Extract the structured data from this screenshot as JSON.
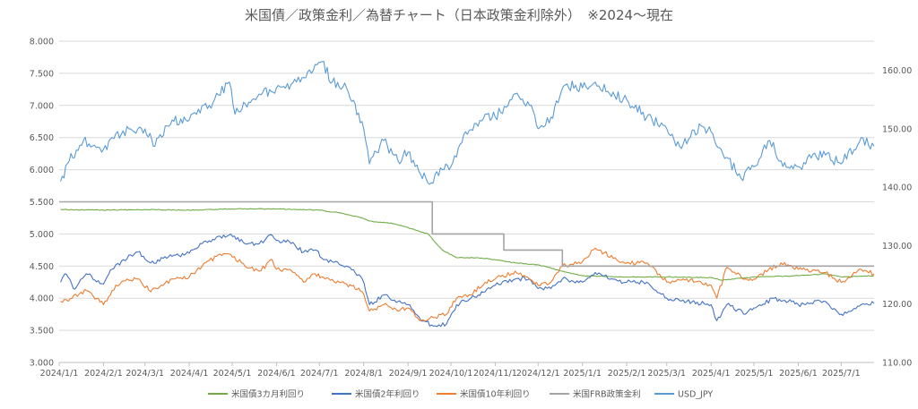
{
  "chart_data": {
    "type": "line",
    "title": "米国債／政策金利／為替チャート（日本政策金利除外）　※2024～現在",
    "x_start": "2024-01-01",
    "x_end": "2025-07-24",
    "x_tick_labels": [
      "2024/1/1",
      "2024/2/1",
      "2024/3/1",
      "2024/4/1",
      "2024/5/1",
      "2024/6/1",
      "2024/7/1",
      "2024/8/1",
      "2024/9/1",
      "2024/10/1",
      "2024/11/1",
      "2024/12/1",
      "2025/1/1",
      "2025/2/1",
      "2025/3/1",
      "2025/4/1",
      "2025/5/1",
      "2025/6/1",
      "2025/7/1"
    ],
    "x_tick_dates": [
      "2024-01-01",
      "2024-02-01",
      "2024-03-01",
      "2024-04-01",
      "2024-05-01",
      "2024-06-01",
      "2024-07-01",
      "2024-08-01",
      "2024-09-01",
      "2024-10-01",
      "2024-11-01",
      "2024-12-01",
      "2025-01-01",
      "2025-02-01",
      "2025-03-01",
      "2025-04-01",
      "2025-05-01",
      "2025-06-01",
      "2025-07-01"
    ],
    "y_left": {
      "min": 3.0,
      "max": 8.0,
      "ticks": [
        "3.000",
        "3.500",
        "4.000",
        "4.500",
        "5.000",
        "5.500",
        "6.000",
        "6.500",
        "7.000",
        "7.500",
        "8.000"
      ]
    },
    "y_right": {
      "min": 110,
      "max": 165,
      "ticks": [
        "110.00",
        "120.00",
        "130.00",
        "140.00",
        "150.00",
        "160.00"
      ]
    },
    "grid": "horizontal",
    "legend_position": "bottom",
    "series": [
      {
        "name": "米国債3カ月利回り",
        "color": "#70ad47",
        "axis": "left",
        "step": false,
        "points": [
          [
            "2024-01-02",
            5.38
          ],
          [
            "2024-02-01",
            5.37
          ],
          [
            "2024-03-01",
            5.38
          ],
          [
            "2024-04-01",
            5.37
          ],
          [
            "2024-05-01",
            5.39
          ],
          [
            "2024-06-01",
            5.39
          ],
          [
            "2024-06-20",
            5.38
          ],
          [
            "2024-07-01",
            5.37
          ],
          [
            "2024-07-15",
            5.33
          ],
          [
            "2024-07-31",
            5.25
          ],
          [
            "2024-08-05",
            5.2
          ],
          [
            "2024-08-20",
            5.17
          ],
          [
            "2024-09-01",
            5.1
          ],
          [
            "2024-09-15",
            5.0
          ],
          [
            "2024-09-25",
            4.75
          ],
          [
            "2024-10-05",
            4.63
          ],
          [
            "2024-10-20",
            4.63
          ],
          [
            "2024-11-01",
            4.6
          ],
          [
            "2024-11-15",
            4.55
          ],
          [
            "2024-12-01",
            4.52
          ],
          [
            "2024-12-18",
            4.42
          ],
          [
            "2025-01-01",
            4.35
          ],
          [
            "2025-02-01",
            4.33
          ],
          [
            "2025-03-01",
            4.33
          ],
          [
            "2025-04-01",
            4.32
          ],
          [
            "2025-04-08",
            4.28
          ],
          [
            "2025-05-01",
            4.33
          ],
          [
            "2025-06-01",
            4.35
          ],
          [
            "2025-06-20",
            4.38
          ],
          [
            "2025-07-01",
            4.33
          ],
          [
            "2025-07-24",
            4.35
          ]
        ]
      },
      {
        "name": "米国債2年利回り",
        "color": "#4472c4",
        "axis": "left",
        "step": false,
        "points": [
          [
            "2024-01-02",
            4.25
          ],
          [
            "2024-01-05",
            4.38
          ],
          [
            "2024-01-12",
            4.14
          ],
          [
            "2024-01-20",
            4.38
          ],
          [
            "2024-02-01",
            4.22
          ],
          [
            "2024-02-07",
            4.45
          ],
          [
            "2024-02-15",
            4.6
          ],
          [
            "2024-02-25",
            4.72
          ],
          [
            "2024-03-05",
            4.55
          ],
          [
            "2024-03-20",
            4.65
          ],
          [
            "2024-04-01",
            4.7
          ],
          [
            "2024-04-10",
            4.85
          ],
          [
            "2024-04-20",
            4.95
          ],
          [
            "2024-04-30",
            5.0
          ],
          [
            "2024-05-10",
            4.85
          ],
          [
            "2024-05-20",
            4.85
          ],
          [
            "2024-05-29",
            4.98
          ],
          [
            "2024-06-01",
            4.9
          ],
          [
            "2024-06-10",
            4.88
          ],
          [
            "2024-06-20",
            4.72
          ],
          [
            "2024-06-28",
            4.75
          ],
          [
            "2024-07-05",
            4.6
          ],
          [
            "2024-07-20",
            4.5
          ],
          [
            "2024-07-31",
            4.3
          ],
          [
            "2024-08-05",
            3.9
          ],
          [
            "2024-08-15",
            4.05
          ],
          [
            "2024-08-25",
            3.95
          ],
          [
            "2024-09-01",
            3.9
          ],
          [
            "2024-09-10",
            3.65
          ],
          [
            "2024-09-20",
            3.57
          ],
          [
            "2024-09-28",
            3.6
          ],
          [
            "2024-10-05",
            3.9
          ],
          [
            "2024-10-15",
            4.0
          ],
          [
            "2024-10-25",
            4.1
          ],
          [
            "2024-11-01",
            4.2
          ],
          [
            "2024-11-15",
            4.3
          ],
          [
            "2024-11-25",
            4.3
          ],
          [
            "2024-12-01",
            4.15
          ],
          [
            "2024-12-10",
            4.15
          ],
          [
            "2024-12-18",
            4.3
          ],
          [
            "2025-01-01",
            4.25
          ],
          [
            "2025-01-10",
            4.4
          ],
          [
            "2025-01-25",
            4.28
          ],
          [
            "2025-02-01",
            4.25
          ],
          [
            "2025-02-15",
            4.25
          ],
          [
            "2025-03-01",
            4.0
          ],
          [
            "2025-03-15",
            3.95
          ],
          [
            "2025-04-01",
            3.9
          ],
          [
            "2025-04-05",
            3.65
          ],
          [
            "2025-04-12",
            3.9
          ],
          [
            "2025-04-25",
            3.75
          ],
          [
            "2025-05-01",
            3.85
          ],
          [
            "2025-05-15",
            4.0
          ],
          [
            "2025-05-25",
            3.95
          ],
          [
            "2025-06-01",
            3.9
          ],
          [
            "2025-06-20",
            3.95
          ],
          [
            "2025-07-01",
            3.75
          ],
          [
            "2025-07-15",
            3.9
          ],
          [
            "2025-07-24",
            3.92
          ]
        ]
      },
      {
        "name": "米国債10年利回り",
        "color": "#ed7d31",
        "axis": "left",
        "step": false,
        "points": [
          [
            "2024-01-02",
            3.95
          ],
          [
            "2024-01-10",
            4.0
          ],
          [
            "2024-01-20",
            4.12
          ],
          [
            "2024-02-01",
            3.9
          ],
          [
            "2024-02-07",
            4.12
          ],
          [
            "2024-02-15",
            4.27
          ],
          [
            "2024-02-25",
            4.3
          ],
          [
            "2024-03-05",
            4.1
          ],
          [
            "2024-03-20",
            4.3
          ],
          [
            "2024-04-01",
            4.33
          ],
          [
            "2024-04-10",
            4.5
          ],
          [
            "2024-04-20",
            4.65
          ],
          [
            "2024-04-30",
            4.68
          ],
          [
            "2024-05-10",
            4.5
          ],
          [
            "2024-05-20",
            4.42
          ],
          [
            "2024-05-29",
            4.6
          ],
          [
            "2024-06-01",
            4.45
          ],
          [
            "2024-06-10",
            4.45
          ],
          [
            "2024-06-20",
            4.25
          ],
          [
            "2024-06-28",
            4.38
          ],
          [
            "2024-07-05",
            4.3
          ],
          [
            "2024-07-20",
            4.22
          ],
          [
            "2024-07-31",
            4.1
          ],
          [
            "2024-08-05",
            3.8
          ],
          [
            "2024-08-15",
            3.9
          ],
          [
            "2024-08-25",
            3.8
          ],
          [
            "2024-09-01",
            3.85
          ],
          [
            "2024-09-10",
            3.65
          ],
          [
            "2024-09-20",
            3.7
          ],
          [
            "2024-09-28",
            3.75
          ],
          [
            "2024-10-05",
            4.0
          ],
          [
            "2024-10-15",
            4.05
          ],
          [
            "2024-10-25",
            4.25
          ],
          [
            "2024-11-01",
            4.3
          ],
          [
            "2024-11-15",
            4.42
          ],
          [
            "2024-11-25",
            4.3
          ],
          [
            "2024-12-01",
            4.2
          ],
          [
            "2024-12-10",
            4.25
          ],
          [
            "2024-12-18",
            4.5
          ],
          [
            "2025-01-01",
            4.57
          ],
          [
            "2025-01-10",
            4.78
          ],
          [
            "2025-01-25",
            4.6
          ],
          [
            "2025-02-01",
            4.55
          ],
          [
            "2025-02-15",
            4.55
          ],
          [
            "2025-03-01",
            4.25
          ],
          [
            "2025-03-15",
            4.3
          ],
          [
            "2025-04-01",
            4.2
          ],
          [
            "2025-04-05",
            4.0
          ],
          [
            "2025-04-12",
            4.48
          ],
          [
            "2025-04-25",
            4.3
          ],
          [
            "2025-05-01",
            4.3
          ],
          [
            "2025-05-20",
            4.55
          ],
          [
            "2025-06-01",
            4.45
          ],
          [
            "2025-06-20",
            4.4
          ],
          [
            "2025-07-01",
            4.25
          ],
          [
            "2025-07-15",
            4.45
          ],
          [
            "2025-07-24",
            4.38
          ]
        ]
      },
      {
        "name": "米国FRB政策金利",
        "color": "#a5a5a5",
        "axis": "left",
        "step": true,
        "points": [
          [
            "2024-01-01",
            5.5
          ],
          [
            "2024-09-18",
            5.0
          ],
          [
            "2024-11-07",
            4.75
          ],
          [
            "2024-12-18",
            4.5
          ],
          [
            "2025-07-24",
            4.5
          ]
        ]
      },
      {
        "name": "USD_JPY",
        "color": "#5b9bd5",
        "axis": "right",
        "step": false,
        "points": [
          [
            "2024-01-02",
            141.0
          ],
          [
            "2024-01-08",
            144.5
          ],
          [
            "2024-01-18",
            148.0
          ],
          [
            "2024-02-01",
            146.5
          ],
          [
            "2024-02-07",
            148.5
          ],
          [
            "2024-02-20",
            150.0
          ],
          [
            "2024-03-01",
            150.0
          ],
          [
            "2024-03-08",
            147.0
          ],
          [
            "2024-03-20",
            151.5
          ],
          [
            "2024-04-01",
            151.5
          ],
          [
            "2024-04-15",
            154.0
          ],
          [
            "2024-04-29",
            158.0
          ],
          [
            "2024-05-03",
            152.5
          ],
          [
            "2024-05-15",
            155.0
          ],
          [
            "2024-06-01",
            157.0
          ],
          [
            "2024-06-15",
            158.0
          ],
          [
            "2024-06-28",
            161.0
          ],
          [
            "2024-07-03",
            161.5
          ],
          [
            "2024-07-10",
            158.0
          ],
          [
            "2024-07-20",
            157.0
          ],
          [
            "2024-08-01",
            150.0
          ],
          [
            "2024-08-05",
            144.0
          ],
          [
            "2024-08-15",
            148.0
          ],
          [
            "2024-08-25",
            144.5
          ],
          [
            "2024-09-01",
            146.0
          ],
          [
            "2024-09-16",
            140.5
          ],
          [
            "2024-09-25",
            143.0
          ],
          [
            "2024-10-01",
            143.5
          ],
          [
            "2024-10-10",
            149.0
          ],
          [
            "2024-10-25",
            152.5
          ],
          [
            "2024-11-01",
            152.0
          ],
          [
            "2024-11-15",
            156.0
          ],
          [
            "2024-11-25",
            154.0
          ],
          [
            "2024-12-01",
            150.0
          ],
          [
            "2024-12-10",
            152.0
          ],
          [
            "2024-12-20",
            157.5
          ],
          [
            "2025-01-01",
            157.0
          ],
          [
            "2025-01-10",
            158.0
          ],
          [
            "2025-01-20",
            156.0
          ],
          [
            "2025-02-01",
            155.0
          ],
          [
            "2025-02-15",
            152.0
          ],
          [
            "2025-03-01",
            150.0
          ],
          [
            "2025-03-10",
            147.0
          ],
          [
            "2025-03-25",
            150.5
          ],
          [
            "2025-04-01",
            149.5
          ],
          [
            "2025-04-08",
            146.5
          ],
          [
            "2025-04-22",
            141.5
          ],
          [
            "2025-05-01",
            143.5
          ],
          [
            "2025-05-12",
            148.0
          ],
          [
            "2025-05-20",
            144.5
          ],
          [
            "2025-06-01",
            143.5
          ],
          [
            "2025-06-10",
            145.0
          ],
          [
            "2025-06-20",
            145.5
          ],
          [
            "2025-07-01",
            144.0
          ],
          [
            "2025-07-15",
            148.5
          ],
          [
            "2025-07-24",
            147.0
          ]
        ]
      }
    ]
  }
}
